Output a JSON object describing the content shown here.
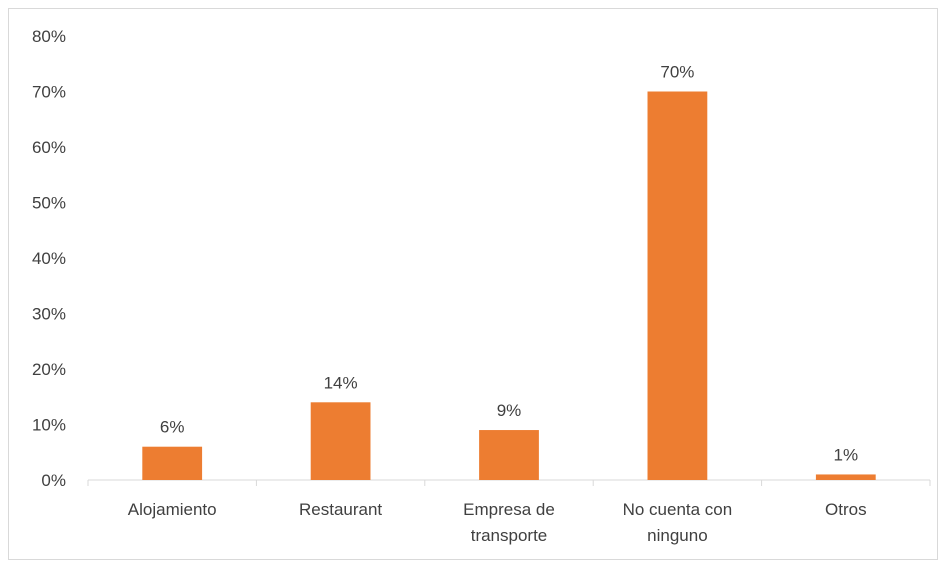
{
  "chart_data": {
    "type": "bar",
    "categories": [
      [
        "Alojamiento"
      ],
      [
        "Restaurant"
      ],
      [
        "Empresa de",
        "transporte"
      ],
      [
        "No cuenta con",
        "ninguno"
      ],
      [
        "Otros"
      ]
    ],
    "values": [
      6,
      14,
      9,
      70,
      1
    ],
    "data_labels": [
      "6%",
      "14%",
      "9%",
      "70%",
      "1%"
    ],
    "value_format": "percent",
    "ylim": [
      0,
      80
    ],
    "yticks": [
      0,
      10,
      20,
      30,
      40,
      50,
      60,
      70,
      80
    ],
    "ytick_labels": [
      "0%",
      "10%",
      "20%",
      "30%",
      "40%",
      "50%",
      "60%",
      "70%",
      "80%"
    ],
    "title": "",
    "xlabel": "",
    "ylabel": "",
    "grid": false,
    "legend": "none",
    "bar_color": "#ed7d31",
    "axis_color": "#d9d9d9",
    "text_color": "#404040"
  }
}
